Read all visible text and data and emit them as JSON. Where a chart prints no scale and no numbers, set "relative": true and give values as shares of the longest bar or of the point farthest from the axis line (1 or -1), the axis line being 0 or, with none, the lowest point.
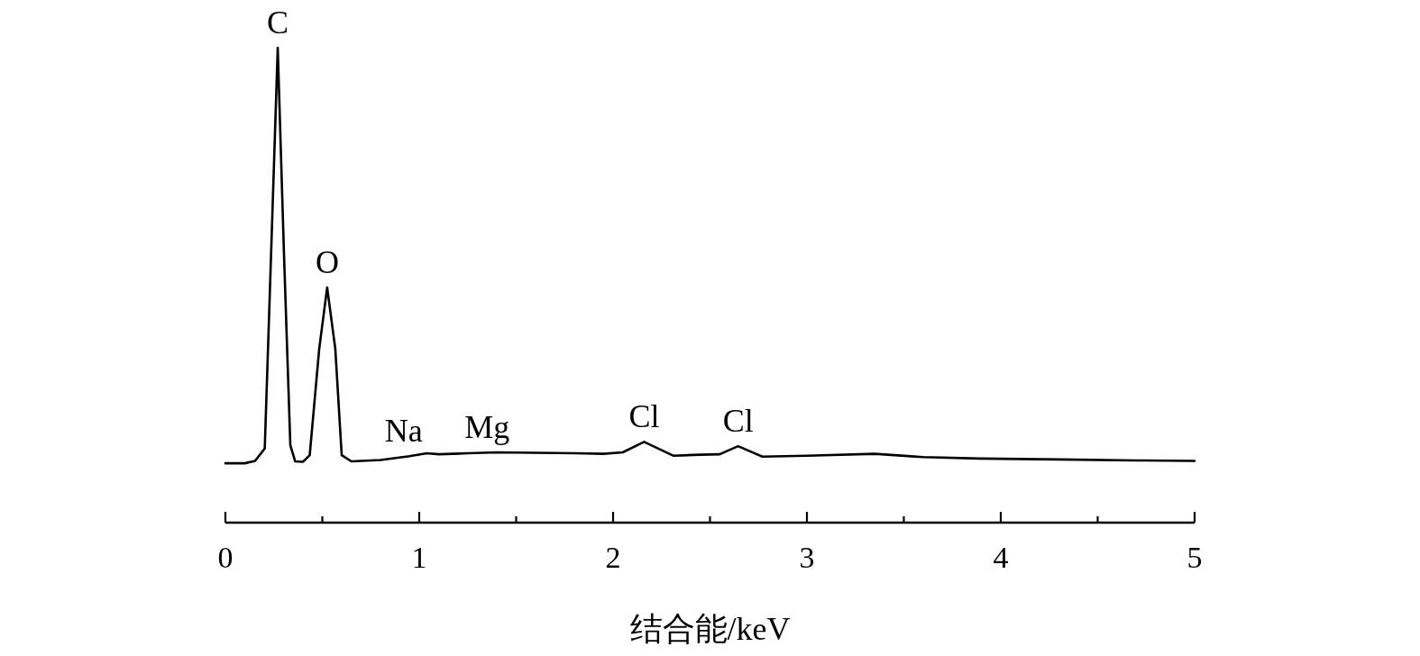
{
  "chart_data": {
    "type": "line",
    "relative": true,
    "xlabel": "结合能/keV",
    "xlim": [
      0,
      5
    ],
    "xticks": [
      0,
      {
        "value": 0.5,
        "label": null
      },
      1,
      {
        "value": 1.5,
        "label": null
      },
      2,
      {
        "value": 2.5,
        "label": null
      },
      3,
      {
        "value": 3.5,
        "label": null
      },
      4,
      {
        "value": 4.5,
        "label": null
      },
      5
    ],
    "series": [
      {
        "color": "#000000",
        "x": [
          0,
          0.1,
          0.153,
          0.203,
          0.236,
          0.27,
          0.302,
          0.335,
          0.36,
          0.4,
          0.435,
          0.484,
          0.525,
          0.567,
          0.6,
          0.65,
          0.8,
          0.95,
          1.04,
          1.1,
          1.25,
          1.4,
          1.6,
          1.81,
          1.95,
          2.05,
          2.16,
          2.31,
          2.45,
          2.55,
          2.645,
          2.77,
          3.0,
          3.35,
          3.6,
          3.89,
          4.3,
          4.7,
          5.0
        ],
        "values": [
          0.125,
          0.125,
          0.13,
          0.156,
          0.569,
          1.0,
          0.569,
          0.163,
          0.129,
          0.128,
          0.142,
          0.366,
          0.495,
          0.366,
          0.142,
          0.129,
          0.132,
          0.14,
          0.146,
          0.144,
          0.146,
          0.148,
          0.147,
          0.146,
          0.145,
          0.148,
          0.17,
          0.141,
          0.143,
          0.144,
          0.161,
          0.139,
          0.141,
          0.145,
          0.138,
          0.135,
          0.133,
          0.131,
          0.13
        ]
      }
    ],
    "annotations": [
      {
        "text": "C",
        "x": 0.27,
        "y": 1.0
      },
      {
        "text": "O",
        "x": 0.525,
        "y": 0.495
      },
      {
        "text": "Na",
        "x": 0.92,
        "y": 0.14
      },
      {
        "text": "Mg",
        "x": 1.35,
        "y": 0.148
      },
      {
        "text": "Cl",
        "x": 2.16,
        "y": 0.17
      },
      {
        "text": "Cl",
        "x": 2.645,
        "y": 0.161
      }
    ]
  }
}
